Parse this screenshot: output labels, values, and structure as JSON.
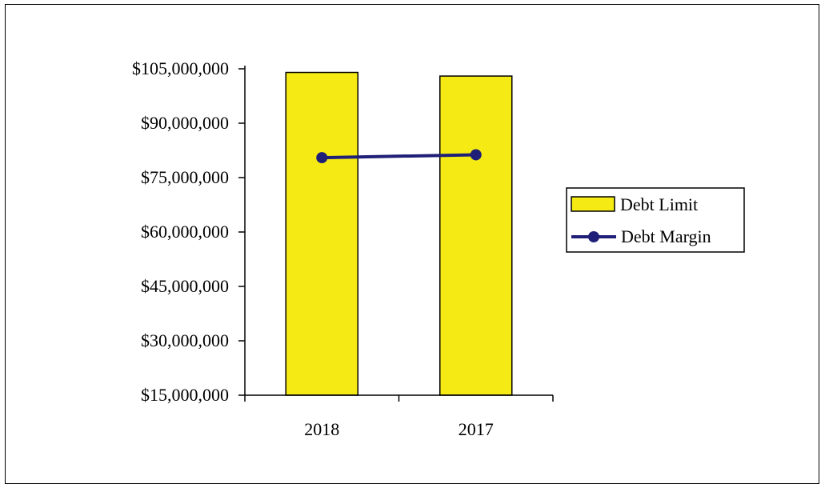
{
  "chart_data": {
    "type": "bar",
    "categories": [
      "2018",
      "2017"
    ],
    "series": [
      {
        "name": "Debt Limit",
        "type": "bar",
        "values": [
          104000000,
          103000000
        ],
        "color": "#F5EA14"
      },
      {
        "name": "Debt Margin",
        "type": "line",
        "values": [
          80500000,
          81300000
        ],
        "color": "#1F1F78"
      }
    ],
    "y_ticks": [
      "$15,000,000",
      "$30,000,000",
      "$45,000,000",
      "$60,000,000",
      "$75,000,000",
      "$90,000,000",
      "$105,000,000"
    ],
    "ylim": [
      15000000,
      105000000
    ],
    "legend_position": "right",
    "grid": false
  }
}
